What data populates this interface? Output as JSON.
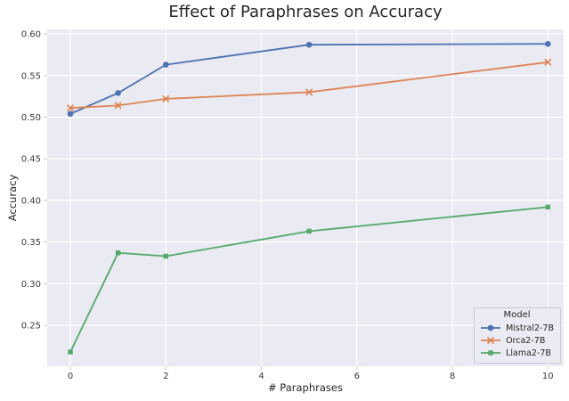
{
  "chart_data": {
    "type": "line",
    "title": "Effect of Paraphrases on Accuracy",
    "xlabel": "# Paraphrases",
    "ylabel": "Accuracy",
    "x": [
      0,
      1,
      2,
      5,
      10
    ],
    "series": [
      {
        "name": "Mistral2-7B",
        "color": "#4C72B0",
        "marker": "circle",
        "values": [
          0.504,
          0.529,
          0.563,
          0.587,
          0.588
        ]
      },
      {
        "name": "Orca2-7B",
        "color": "#DD8452",
        "marker": "x",
        "values": [
          0.511,
          0.514,
          0.522,
          0.53,
          0.566
        ]
      },
      {
        "name": "Llama2-7B",
        "color": "#55A868",
        "marker": "square",
        "values": [
          0.218,
          0.337,
          0.333,
          0.363,
          0.392
        ]
      }
    ],
    "xticks": [
      0,
      2,
      4,
      6,
      8,
      10
    ],
    "yticks": [
      0.25,
      0.3,
      0.35,
      0.4,
      0.45,
      0.5,
      0.55,
      0.6
    ],
    "xlim": [
      -0.485,
      10.33
    ],
    "ylim": [
      0.2008,
      0.6054
    ],
    "grid": true,
    "legend": {
      "title": "Model",
      "position": "lower right"
    },
    "plot_bg": "#EAEAF2",
    "grid_color": "#FFFFFF",
    "tick_mark_color": "#CBCBCB",
    "tick_label_color": "#3A3A3A",
    "text_color": "#262626"
  }
}
